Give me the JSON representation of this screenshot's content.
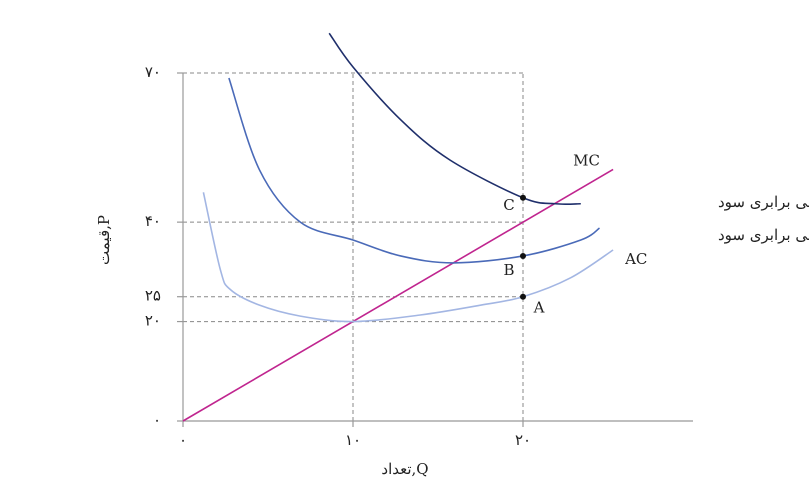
{
  "chart_data": {
    "type": "line",
    "x_label": "تعداد,Q",
    "y_label": "قیمت,P",
    "xlim": [
      0,
      30
    ],
    "ylim": [
      0,
      70
    ],
    "xticks": [
      {
        "value": 0,
        "label": "۰"
      },
      {
        "value": 10,
        "label": "۱۰"
      },
      {
        "value": 20,
        "label": "۲۰"
      }
    ],
    "yticks": [
      {
        "value": 0,
        "label": "۰"
      },
      {
        "value": 20,
        "label": "۲۰"
      },
      {
        "value": 25,
        "label": "۲۵"
      },
      {
        "value": 40,
        "label": "۴۰"
      },
      {
        "value": 70,
        "label": "۷۰"
      }
    ],
    "series": [
      {
        "name": "MC",
        "color": "#c0258f",
        "x": [
          0,
          25.3
        ],
        "values": [
          0,
          50.6
        ]
      },
      {
        "name": "منحنی برابری سود",
        "color": "#1f2f6b",
        "x": [
          8.6,
          10,
          12.8,
          15.7,
          20,
          21.9,
          23.4
        ],
        "values": [
          78,
          71.2,
          60.6,
          52.5,
          44.9,
          43.7,
          43.7
        ]
      },
      {
        "name": "منحنی برابری سود",
        "color": "#4a6ab8",
        "x": [
          2.7,
          4.5,
          6.9,
          10,
          12.8,
          15.9,
          20,
          23.4,
          24.5
        ],
        "values": [
          69,
          50.5,
          40,
          36.4,
          33.2,
          31.8,
          33.2,
          36.4,
          38.8
        ]
      },
      {
        "name": "AC",
        "color": "#a3b6e3",
        "x": [
          1.2,
          2.2,
          2.8,
          4.5,
          6.9,
          10,
          13.9,
          17.5,
          20,
          22.8,
          25.3
        ],
        "values": [
          46,
          30.4,
          26.4,
          23.3,
          21.1,
          20,
          21.3,
          23.3,
          25,
          28.8,
          34.4
        ]
      }
    ],
    "points": [
      {
        "label": "C",
        "x": 20,
        "y": 44.9
      },
      {
        "label": "B",
        "x": 20,
        "y": 33.2
      },
      {
        "label": "A",
        "x": 20,
        "y": 25
      }
    ]
  }
}
